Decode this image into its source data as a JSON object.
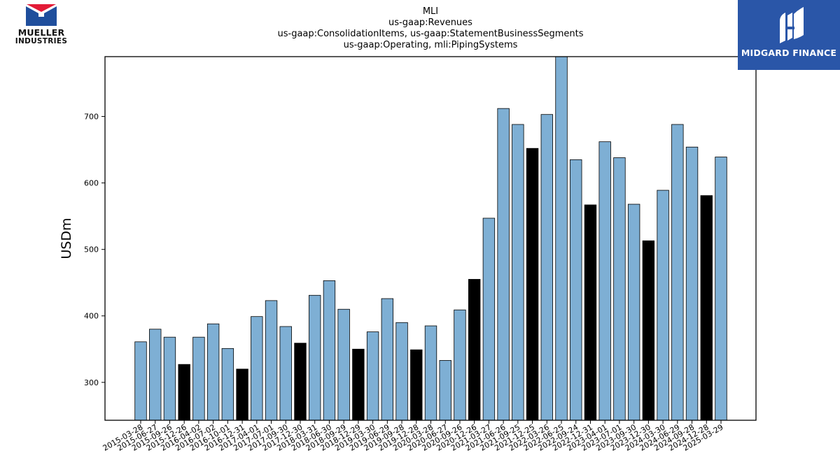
{
  "chart_data": {
    "type": "bar",
    "title_lines": [
      "MLI",
      "us-gaap:Revenues",
      "us-gaap:ConsolidationItems, us-gaap:StatementBusinessSegments",
      "us-gaap:Operating, mli:PipingSystems"
    ],
    "xlabel": "",
    "ylabel": "USDm",
    "ylim": [
      243,
      790
    ],
    "yticks": [
      300,
      400,
      500,
      600,
      700
    ],
    "categories": [
      "2015-03-28",
      "2015-06-27",
      "2015-09-26",
      "2015-12-26",
      "2016-04-02",
      "2016-07-02",
      "2016-10-01",
      "2016-12-31",
      "2017-04-01",
      "2017-07-01",
      "2017-09-30",
      "2017-12-30",
      "2018-03-31",
      "2018-06-30",
      "2018-09-29",
      "2018-12-29",
      "2019-03-30",
      "2019-06-29",
      "2019-09-28",
      "2019-12-28",
      "2020-03-28",
      "2020-06-27",
      "2020-09-26",
      "2020-12-26",
      "2021-03-27",
      "2021-06-26",
      "2021-09-25",
      "2021-12-25",
      "2022-03-26",
      "2022-06-25",
      "2022-09-24",
      "2022-12-31",
      "2023-04-01",
      "2023-07-01",
      "2023-09-30",
      "2023-12-30",
      "2024-03-30",
      "2024-06-29",
      "2024-09-28",
      "2024-12-28",
      "2025-03-29"
    ],
    "values": [
      361,
      380,
      368,
      327,
      368,
      388,
      351,
      320,
      399,
      423,
      384,
      359,
      431,
      453,
      410,
      350,
      376,
      426,
      390,
      349,
      385,
      333,
      409,
      455,
      547,
      712,
      688,
      652,
      703,
      790,
      635,
      567,
      662,
      638,
      568,
      513,
      589,
      688,
      654,
      581,
      639
    ],
    "highlight": [
      false,
      false,
      false,
      true,
      false,
      false,
      false,
      true,
      false,
      false,
      false,
      true,
      false,
      false,
      false,
      true,
      false,
      false,
      false,
      true,
      false,
      false,
      false,
      true,
      false,
      false,
      false,
      true,
      false,
      false,
      false,
      true,
      false,
      false,
      false,
      true,
      false,
      false,
      false,
      true,
      false
    ],
    "colors": {
      "bar": "#7eafd4",
      "highlight": "#000000",
      "edge": "#000000"
    },
    "grid": false,
    "legend": "none"
  },
  "logos": {
    "left": {
      "line1": "MUELLER",
      "line2": "INDUSTRIES",
      "colors": {
        "red": "#e31b37",
        "blue": "#1f4e9c"
      }
    },
    "right": {
      "text": "MIDGARD FINANCE",
      "background": "#2a56a8"
    }
  }
}
